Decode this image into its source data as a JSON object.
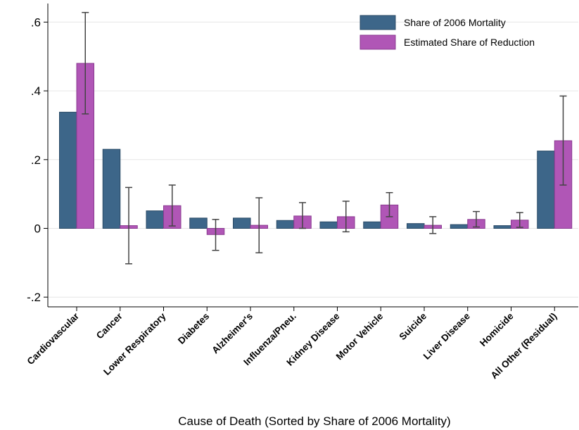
{
  "chart_data": {
    "type": "bar",
    "xlabel": "Cause of Death (Sorted by Share of 2006 Mortality)",
    "ylabel": "",
    "ylim": [
      -0.25,
      0.65
    ],
    "yticks": [
      -0.2,
      0,
      0.2,
      0.4,
      0.6
    ],
    "ytick_labels": [
      "-.2",
      "0",
      ".2",
      ".4",
      ".6"
    ],
    "grid": true,
    "legend_position": "top-right",
    "categories": [
      "Cardiovascular",
      "Cancer",
      "Lower Respiratory",
      "Diabetes",
      "Alzheimer's",
      "Influenza/Pneu.",
      "Kidney Disease",
      "Motor Vehicle",
      "Suicide",
      "Liver Disease",
      "Homicide",
      "All Other (Residual)"
    ],
    "series": [
      {
        "name": "Share of 2006 Mortality",
        "color": "#3d6689",
        "values": [
          0.338,
          0.23,
          0.051,
          0.03,
          0.03,
          0.023,
          0.019,
          0.019,
          0.014,
          0.011,
          0.008,
          0.225
        ]
      },
      {
        "name": "Estimated Share of Reduction",
        "color": "#b056b6",
        "values": [
          0.48,
          0.008,
          0.066,
          -0.018,
          0.009,
          0.036,
          0.034,
          0.068,
          0.009,
          0.026,
          0.024,
          0.255
        ],
        "ci_low": [
          0.333,
          -0.103,
          0.007,
          -0.064,
          -0.071,
          0.0,
          -0.01,
          0.034,
          -0.015,
          0.004,
          0.003,
          0.126
        ],
        "ci_high": [
          0.628,
          0.119,
          0.126,
          0.026,
          0.089,
          0.075,
          0.079,
          0.104,
          0.034,
          0.049,
          0.046,
          0.385
        ]
      }
    ]
  }
}
